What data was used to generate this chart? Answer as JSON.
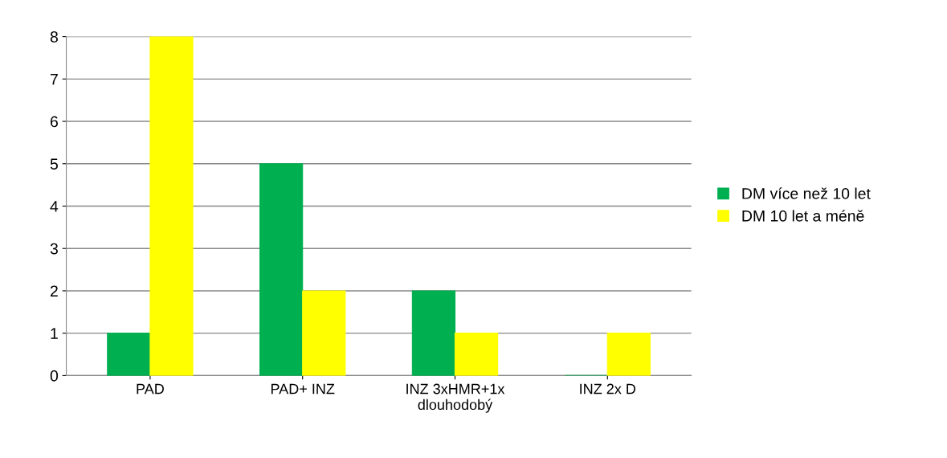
{
  "chart_data": {
    "type": "bar",
    "categories": [
      "PAD",
      "PAD+ INZ",
      "INZ 3xHMR+1x\ndlouhodobý",
      "INZ 2x D"
    ],
    "series": [
      {
        "name": "DM více než 10 let",
        "color": "#00b050",
        "values": [
          1,
          5,
          2,
          0
        ]
      },
      {
        "name": "DM 10 let a méně",
        "color": "#ffff00",
        "values": [
          8,
          2,
          1,
          1
        ]
      }
    ],
    "ylim": [
      0,
      8
    ],
    "yticks": [
      0,
      1,
      2,
      3,
      4,
      5,
      6,
      7,
      8
    ],
    "grid": "y",
    "legend": "right"
  }
}
